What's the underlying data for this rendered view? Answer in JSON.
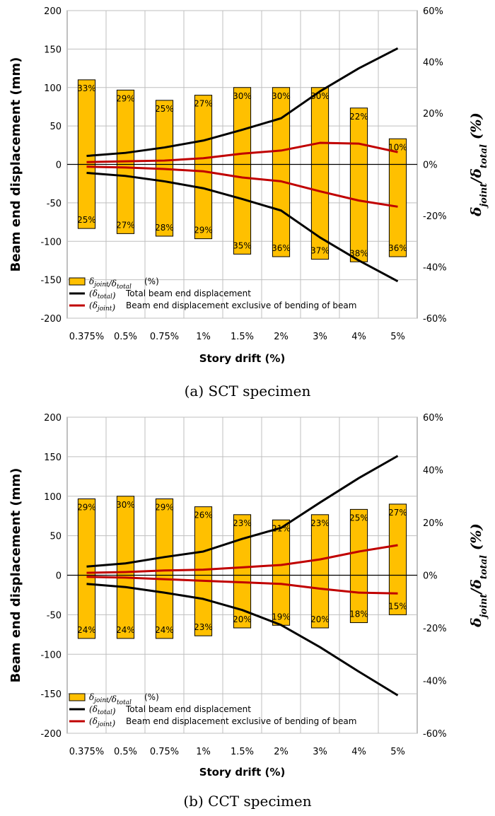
{
  "chart_data": [
    {
      "type": "bar",
      "caption": "(a) SCT specimen",
      "categories": [
        "0.375%",
        "0.5%",
        "0.75%",
        "1%",
        "1.5%",
        "2%",
        "3%",
        "4%",
        "5%"
      ],
      "xlabel": "Story drift (%)",
      "ylabel": "Beam end displacement (mm)",
      "y2label": "δjoint/δtotal (%)",
      "ylim": [
        -200,
        200
      ],
      "y2lim": [
        -60,
        60
      ],
      "yticks": [
        "200",
        "150",
        "100",
        "50",
        "0",
        "-50",
        "-100",
        "-150",
        "-200"
      ],
      "y2ticks": [
        "60%",
        "40%",
        "20%",
        "0%",
        "-20%",
        "-40%",
        "-60%"
      ],
      "series": [
        {
          "name": "δjoint/δtotal (%) positive",
          "kind": "bar",
          "color": "#FFC000",
          "values": [
            33,
            29,
            25,
            27,
            30,
            30,
            30,
            22,
            10
          ],
          "labels": [
            "33%",
            "29%",
            "25%",
            "27%",
            "30%",
            "30%",
            "30%",
            "22%",
            "10%"
          ]
        },
        {
          "name": "δjoint/δtotal (%) negative",
          "kind": "bar",
          "color": "#FFC000",
          "values": [
            -25,
            -27,
            -28,
            -29,
            -35,
            -36,
            -37,
            -38,
            -36
          ],
          "labels": [
            "25%",
            "27%",
            "28%",
            "29%",
            "35%",
            "36%",
            "37%",
            "38%",
            "36%"
          ]
        },
        {
          "name": "Total beam end displacement (+)",
          "kind": "line",
          "color": "#000000",
          "values": [
            11,
            15,
            22,
            31,
            45,
            60,
            95,
            125,
            151
          ]
        },
        {
          "name": "Total beam end displacement (-)",
          "kind": "line",
          "color": "#000000",
          "values": [
            -11,
            -15,
            -22,
            -31,
            -45,
            -60,
            -95,
            -125,
            -152
          ]
        },
        {
          "name": "Beam end displacement exclusive of bending (+)",
          "kind": "line",
          "color": "#C00000",
          "values": [
            3,
            4,
            5,
            8,
            14,
            18,
            28,
            27,
            16
          ]
        },
        {
          "name": "Beam end displacement exclusive of bending (-)",
          "kind": "line",
          "color": "#C00000",
          "values": [
            -3,
            -4,
            -6,
            -9,
            -17,
            -22,
            -35,
            -47,
            -55
          ]
        }
      ],
      "legend": [
        {
          "symbol": "δjoint/δtotal",
          "text": "(%)",
          "style": "bar"
        },
        {
          "symbol": "(δtotal)",
          "text": "Total beam end displacement",
          "style": "black"
        },
        {
          "symbol": "(δjoint)",
          "text": "Beam end displacement exclusive of bending of beam",
          "style": "red"
        }
      ]
    },
    {
      "type": "bar",
      "caption": "(b) CCT specimen",
      "categories": [
        "0.375%",
        "0.5%",
        "0.75%",
        "1%",
        "1.5%",
        "2%",
        "3%",
        "4%",
        "5%"
      ],
      "xlabel": "Story drift (%)",
      "ylabel": "Beam end displacement (mm)",
      "y2label": "δjoint/δtotal (%)",
      "ylim": [
        -200,
        200
      ],
      "y2lim": [
        -60,
        60
      ],
      "yticks": [
        "200",
        "150",
        "100",
        "50",
        "0",
        "-50",
        "-100",
        "-150",
        "-200"
      ],
      "y2ticks": [
        "60%",
        "40%",
        "20%",
        "0%",
        "-20%",
        "-40%",
        "-60%"
      ],
      "series": [
        {
          "name": "δjoint/δtotal (%) positive",
          "kind": "bar",
          "color": "#FFC000",
          "values": [
            29,
            30,
            29,
            26,
            23,
            21,
            23,
            25,
            27
          ],
          "labels": [
            "29%",
            "30%",
            "29%",
            "26%",
            "23%",
            "21%",
            "23%",
            "25%",
            "27%"
          ]
        },
        {
          "name": "δjoint/δtotal (%) negative",
          "kind": "bar",
          "color": "#FFC000",
          "values": [
            -24,
            -24,
            -24,
            -23,
            -20,
            -19,
            -20,
            -18,
            -15
          ],
          "labels": [
            "24%",
            "24%",
            "24%",
            "23%",
            "20%",
            "19%",
            "20%",
            "18%",
            "15%"
          ]
        },
        {
          "name": "Total beam end displacement (+)",
          "kind": "line",
          "color": "#000000",
          "values": [
            11,
            15,
            23,
            30,
            46,
            60,
            92,
            123,
            151
          ]
        },
        {
          "name": "Total beam end displacement (-)",
          "kind": "line",
          "color": "#000000",
          "values": [
            -11,
            -15,
            -22,
            -30,
            -44,
            -63,
            -91,
            -122,
            -152
          ]
        },
        {
          "name": "Beam end displacement exclusive of bending (+)",
          "kind": "line",
          "color": "#C00000",
          "values": [
            3,
            4,
            6,
            7,
            10,
            13,
            20,
            30,
            38
          ]
        },
        {
          "name": "Beam end displacement exclusive of bending (-)",
          "kind": "line",
          "color": "#C00000",
          "values": [
            -2,
            -3,
            -5,
            -7,
            -9,
            -11,
            -17,
            -22,
            -23
          ]
        }
      ],
      "legend": [
        {
          "symbol": "δjoint/δtotal",
          "text": "(%)",
          "style": "bar"
        },
        {
          "symbol": "(δtotal)",
          "text": "Total beam end displacement",
          "style": "black"
        },
        {
          "symbol": "(δjoint)",
          "text": "Beam end displacement exclusive of bending of beam",
          "style": "red"
        }
      ]
    }
  ]
}
